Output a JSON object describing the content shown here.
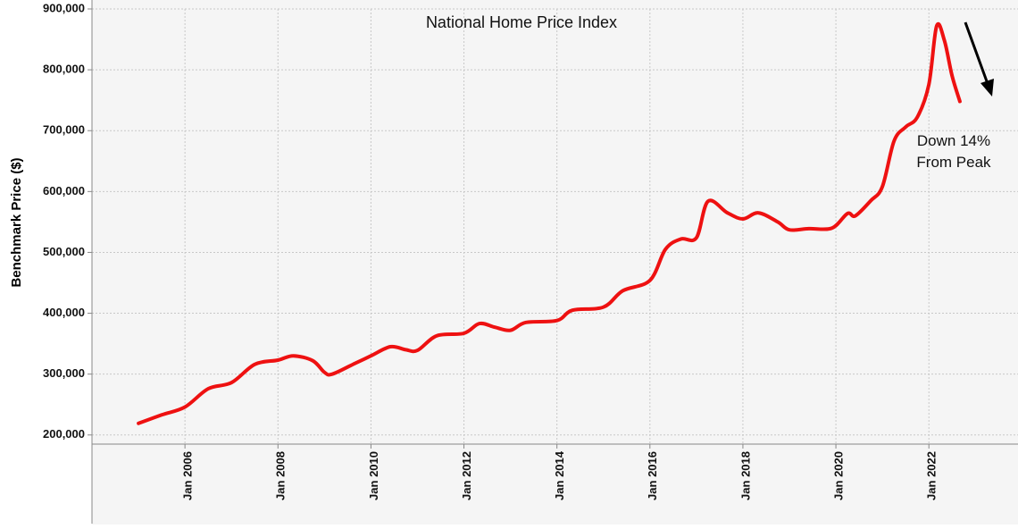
{
  "chart_data": {
    "type": "line",
    "title": "National Home Price Index",
    "ylabel": "Benchmark Price ($)",
    "xlabel": "",
    "ylim": [
      185000,
      900000
    ],
    "yticks": [
      200000,
      300000,
      400000,
      500000,
      600000,
      700000,
      800000,
      900000
    ],
    "ytick_labels": [
      "200,000",
      "300,000",
      "400,000",
      "500,000",
      "600,000",
      "700,000",
      "800,000",
      "900,000"
    ],
    "xlim": [
      "2004-01",
      "2023-12"
    ],
    "xticks": [
      "2006-01",
      "2008-01",
      "2010-01",
      "2012-01",
      "2014-01",
      "2016-01",
      "2018-01",
      "2020-01",
      "2022-01"
    ],
    "xtick_labels": [
      "Jan 2006",
      "Jan 2008",
      "Jan 2010",
      "Jan 2012",
      "Jan 2014",
      "Jan 2016",
      "Jan 2018",
      "Jan 2020",
      "Jan 2022"
    ],
    "grid": true,
    "colors": {
      "line": "#ee1111",
      "plot_background": "#f5f5f5",
      "grid": "#c8c8c8",
      "arrow": "#000000"
    },
    "annotation": {
      "lines": [
        "Down 14%",
        "From Peak"
      ]
    },
    "series": [
      {
        "x": [
          "2005-01",
          "2005-07",
          "2006-01",
          "2006-07",
          "2007-01",
          "2007-07",
          "2008-01",
          "2008-05",
          "2008-10",
          "2009-01",
          "2009-03",
          "2009-09",
          "2010-01",
          "2010-06",
          "2010-10",
          "2011-01",
          "2011-06",
          "2012-01",
          "2012-05",
          "2012-09",
          "2013-01",
          "2013-05",
          "2014-01",
          "2014-05",
          "2015-01",
          "2015-06",
          "2016-01",
          "2016-05",
          "2016-09",
          "2017-01",
          "2017-04",
          "2017-09",
          "2018-01",
          "2018-05",
          "2018-10",
          "2019-01",
          "2019-06",
          "2019-12",
          "2020-04",
          "2020-06",
          "2020-10",
          "2021-01",
          "2021-04",
          "2021-07",
          "2021-10",
          "2022-01",
          "2022-03",
          "2022-05",
          "2022-07",
          "2022-09"
        ],
        "y": [
          219000,
          233000,
          246000,
          276000,
          286000,
          316000,
          323000,
          330000,
          322000,
          303000,
          300000,
          318000,
          330000,
          345000,
          340000,
          339000,
          363000,
          367000,
          383000,
          377000,
          372000,
          385000,
          388000,
          405000,
          410000,
          437000,
          454000,
          505000,
          522000,
          524000,
          584000,
          565000,
          555000,
          565000,
          550000,
          537000,
          539000,
          540000,
          564000,
          560000,
          585000,
          608000,
          683000,
          706000,
          722000,
          776000,
          872000,
          848000,
          790000,
          748000
        ]
      }
    ]
  }
}
